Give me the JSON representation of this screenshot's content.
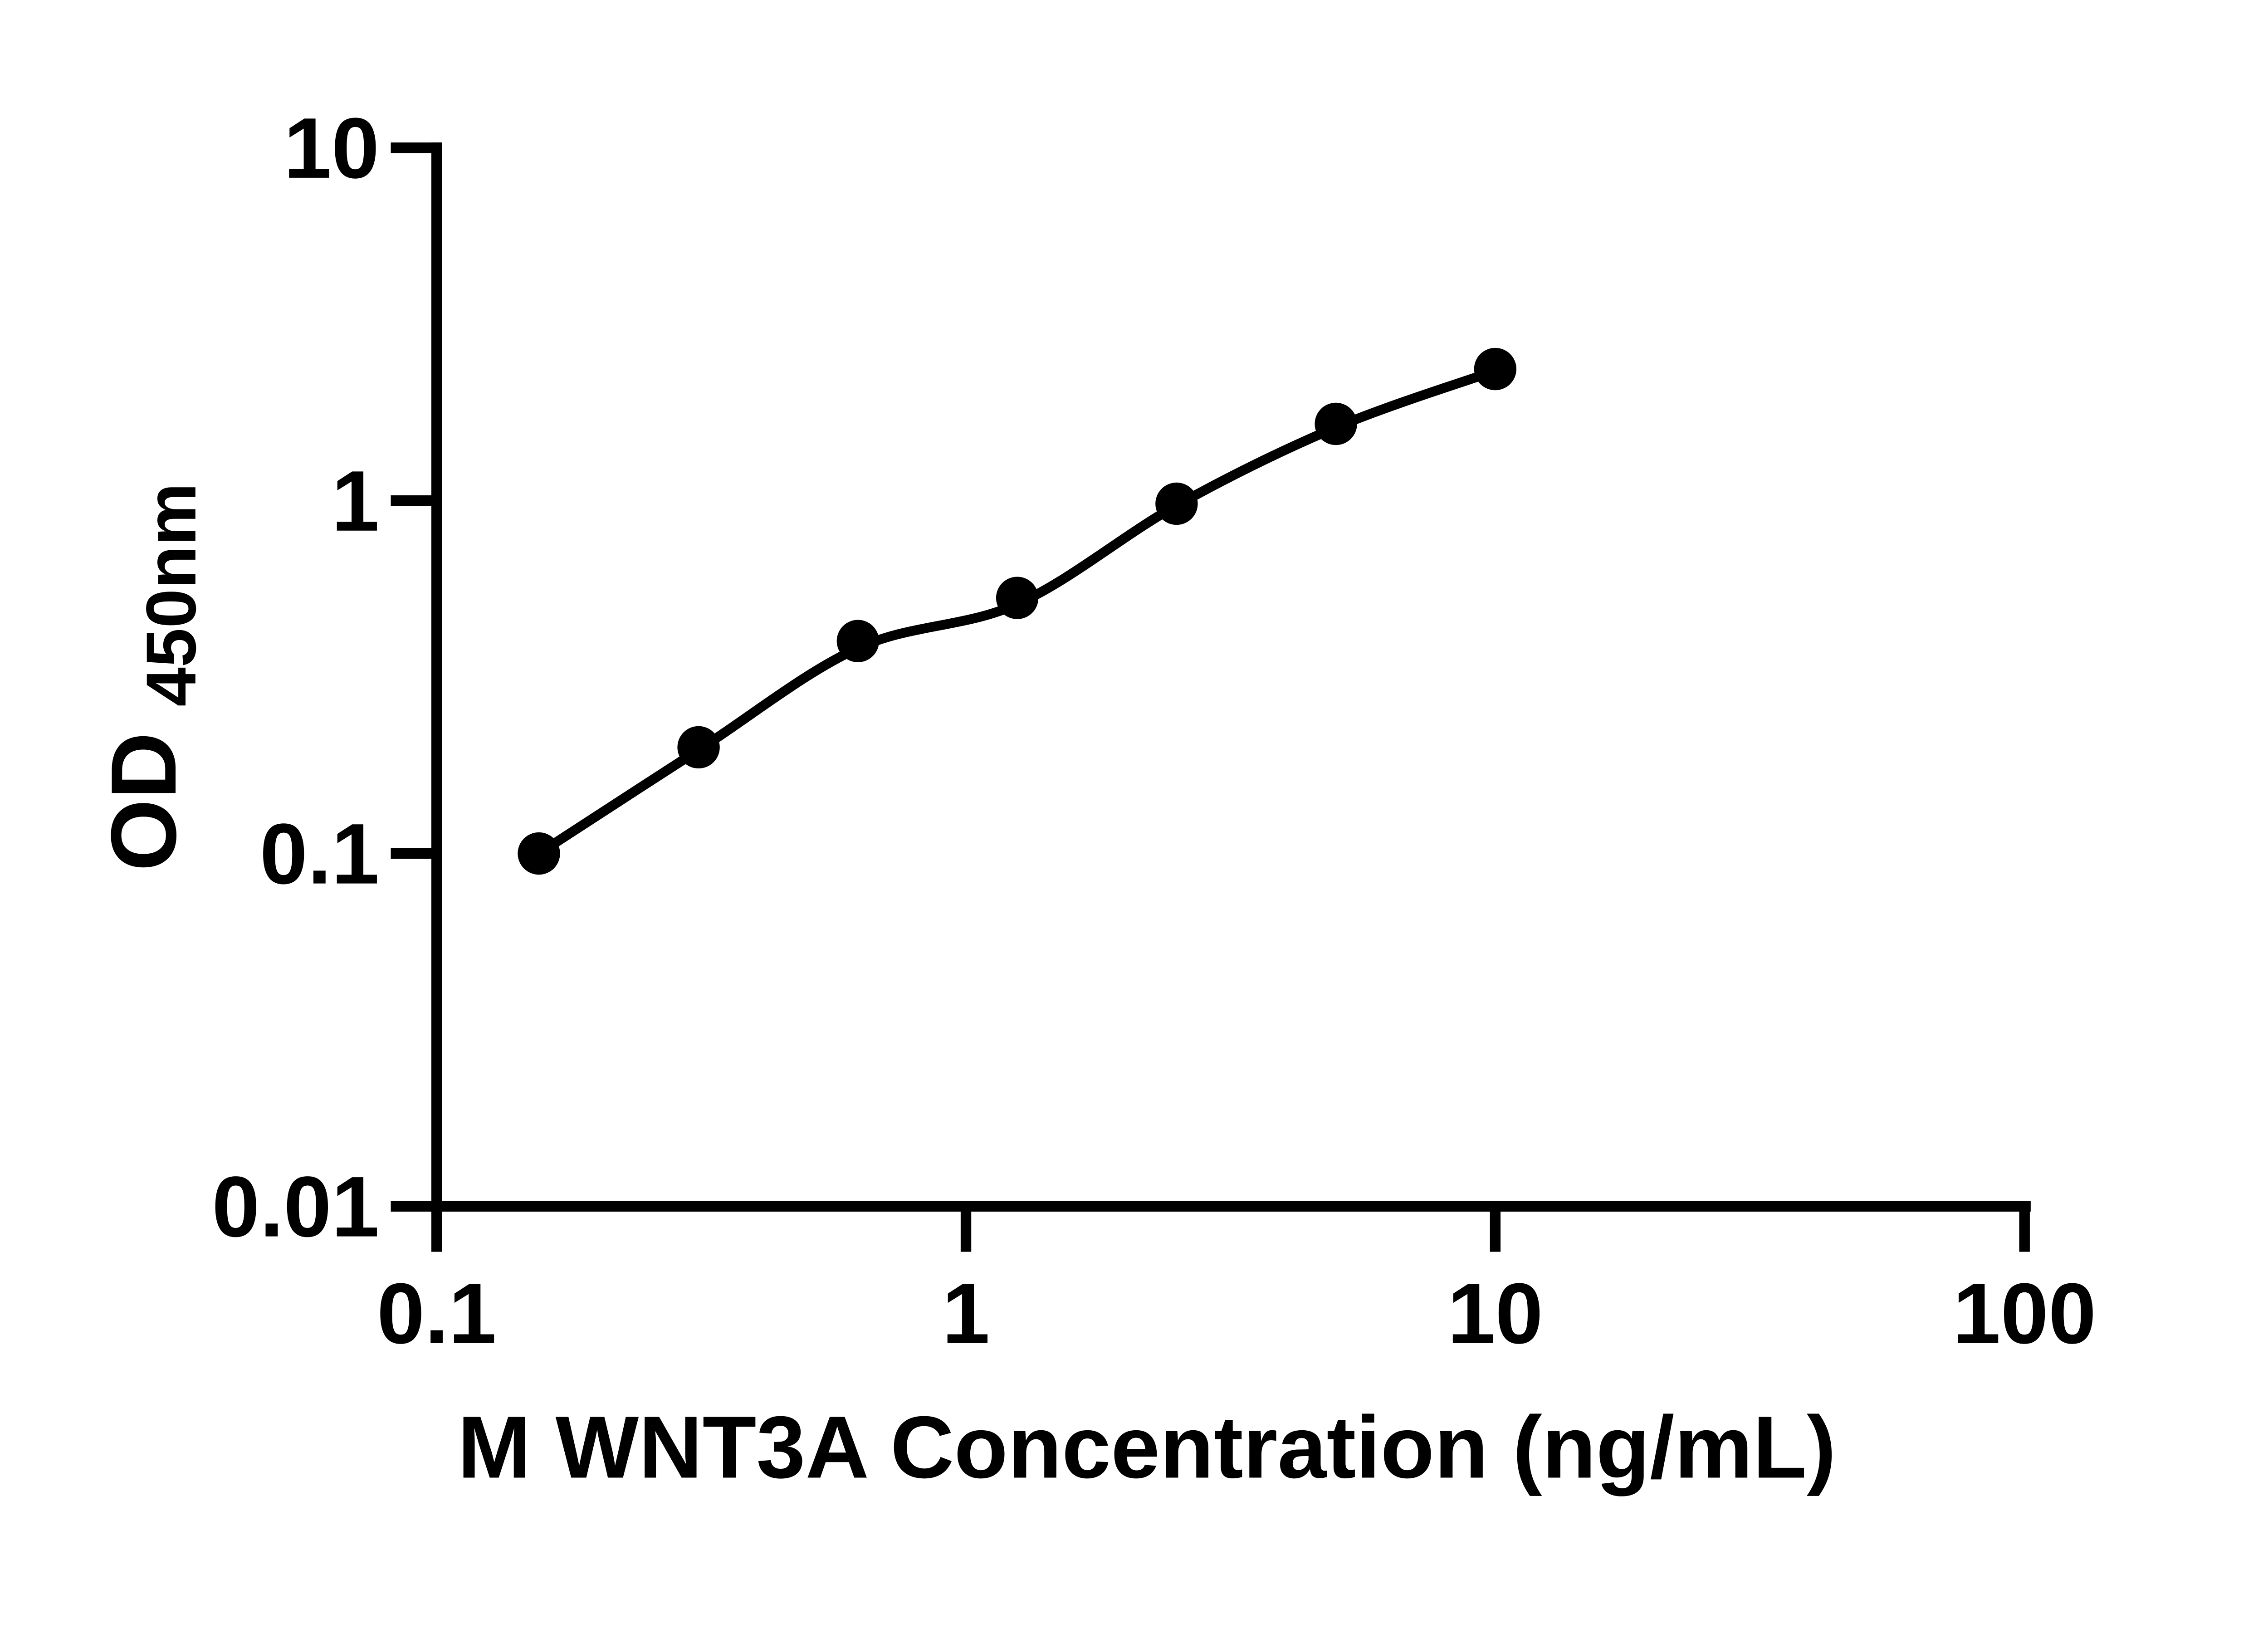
{
  "figure": {
    "background_color": "#ffffff",
    "ink_color": "#000000"
  },
  "y_axis": {
    "label_main": "OD",
    "label_sub": "450nm",
    "scale": "log",
    "ticks": [
      "10",
      "1",
      "0.1",
      "0.01"
    ],
    "tick_values": [
      10,
      1,
      0.1,
      0.01
    ],
    "range": [
      0.01,
      10
    ]
  },
  "x_axis": {
    "title": "M WNT3A Concentration (ng/mL)",
    "scale": "log",
    "ticks": [
      "0.1",
      "1",
      "10",
      "100"
    ],
    "tick_values": [
      0.1,
      1,
      10,
      100
    ],
    "range": [
      0.1,
      100
    ]
  },
  "chart_data": {
    "type": "scatter",
    "x": [
      0.156,
      0.3125,
      0.625,
      1.25,
      2.5,
      5,
      10
    ],
    "y": [
      0.1,
      0.2,
      0.4,
      0.53,
      0.98,
      1.65,
      2.36
    ],
    "title": "",
    "xlabel": "M WNT3A Concentration (ng/mL)",
    "ylabel": "OD450nm",
    "xlim": [
      0.1,
      100
    ],
    "ylim": [
      0.01,
      10
    ],
    "x_scale": "log",
    "y_scale": "log",
    "grid": false,
    "legend": "none",
    "marker": "filled-circle",
    "marker_color": "#000000",
    "line_color": "#000000",
    "trendline": true
  }
}
